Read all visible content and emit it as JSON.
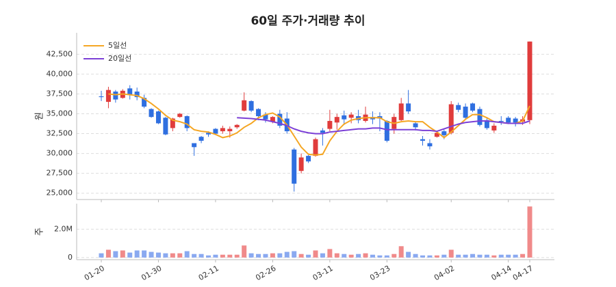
{
  "chart_data": [
    {
      "type": "candlestick",
      "title": "60일 주가·거래량 추이",
      "ylabel": "원",
      "up_color": "#e03c3c",
      "down_color": "#2f6fe0",
      "grid": true,
      "legend": "upper left",
      "ylim": [
        24200,
        45200
      ],
      "yticks": [
        {
          "value": 25000,
          "label": "25,000"
        },
        {
          "value": 27500,
          "label": "27,500"
        },
        {
          "value": 30000,
          "label": "30,000"
        },
        {
          "value": 32500,
          "label": "32,500"
        },
        {
          "value": 35000,
          "label": "35,000"
        },
        {
          "value": 37500,
          "label": "37,500"
        },
        {
          "value": 40000,
          "label": "40,000"
        },
        {
          "value": 42500,
          "label": "42,500"
        }
      ],
      "open": [
        37200,
        36500,
        37800,
        37000,
        38200,
        37800,
        37000,
        35600,
        35300,
        34500,
        33200,
        34600,
        34700,
        31300,
        32100,
        32600,
        33100,
        32800,
        32800,
        33300,
        35400,
        36600,
        35600,
        34900,
        34000,
        35000,
        34400,
        30500,
        27800,
        29700,
        29700,
        32900,
        33100,
        33900,
        34800,
        34500,
        34700,
        34100,
        34600,
        34700,
        34100,
        33100,
        34200,
        36300,
        33800,
        31800,
        31300,
        32100,
        32800,
        32600,
        36100,
        35900,
        36300,
        35600,
        34200,
        32900,
        34100,
        34500,
        34400,
        34000,
        34200
      ],
      "high": [
        37900,
        38400,
        38000,
        38100,
        38600,
        38300,
        37400,
        35700,
        35400,
        34600,
        34500,
        35100,
        34800,
        31300,
        32200,
        32800,
        33200,
        33500,
        33400,
        33700,
        37700,
        36700,
        35700,
        35200,
        34700,
        35500,
        35200,
        30700,
        30000,
        29800,
        32000,
        33200,
        35500,
        35000,
        35400,
        35200,
        35500,
        35900,
        35300,
        35200,
        34200,
        35000,
        37000,
        38000,
        34000,
        32200,
        31800,
        32800,
        33000,
        36600,
        36400,
        36300,
        36400,
        35900,
        34500,
        33800,
        34700,
        34700,
        34600,
        34700,
        44100
      ],
      "low": [
        36600,
        35700,
        36400,
        36900,
        36800,
        36700,
        35700,
        34500,
        33700,
        32300,
        32800,
        34500,
        32800,
        29700,
        31300,
        32100,
        32400,
        32500,
        32000,
        33100,
        35300,
        35200,
        34200,
        33900,
        33800,
        33200,
        32500,
        25200,
        27500,
        28800,
        29600,
        31000,
        32800,
        33000,
        33600,
        33800,
        33800,
        33900,
        33700,
        32800,
        31400,
        32500,
        34100,
        35000,
        32900,
        31000,
        30500,
        32000,
        31800,
        32400,
        35200,
        34300,
        35200,
        33400,
        33000,
        32600,
        33600,
        33700,
        33400,
        33600,
        33700
      ],
      "close": [
        37100,
        38000,
        36800,
        37900,
        37400,
        37100,
        35900,
        34600,
        33800,
        32400,
        34400,
        35000,
        33200,
        30800,
        31600,
        32400,
        32500,
        33200,
        33100,
        33600,
        36700,
        35400,
        34700,
        34300,
        34600,
        33500,
        32800,
        26200,
        29500,
        29000,
        31800,
        32600,
        34100,
        34600,
        34300,
        34900,
        34200,
        34900,
        34300,
        34400,
        31600,
        34600,
        36300,
        35300,
        33300,
        31600,
        30900,
        32600,
        32300,
        36200,
        35500,
        34500,
        35400,
        33600,
        33200,
        33500,
        34000,
        33900,
        33900,
        34300,
        44100
      ],
      "series": [
        {
          "name": "5일선",
          "color": "#f5a623",
          "values": [
            null,
            37500,
            37400,
            37500,
            37400,
            37300,
            36900,
            36300,
            35600,
            34800,
            34200,
            34000,
            33700,
            33000,
            32800,
            32700,
            32400,
            32000,
            32200,
            32600,
            33300,
            33800,
            34500,
            34900,
            35100,
            34600,
            33600,
            32200,
            30800,
            29900,
            29800,
            29900,
            31600,
            32800,
            33700,
            34200,
            34400,
            34500,
            34500,
            34500,
            34000,
            33800,
            34000,
            34100,
            34000,
            34000,
            33300,
            32700,
            32000,
            32700,
            33500,
            34300,
            34900,
            34900,
            34500,
            34000,
            33900,
            33800,
            33800,
            34100,
            36000
          ]
        },
        {
          "name": "20일선",
          "color": "#7b3fd6",
          "values": [
            null,
            null,
            null,
            null,
            null,
            null,
            null,
            null,
            null,
            null,
            null,
            null,
            null,
            null,
            null,
            null,
            null,
            null,
            null,
            34500,
            34450,
            34400,
            34300,
            34200,
            34000,
            33800,
            33500,
            33100,
            32800,
            32600,
            32500,
            32500,
            32700,
            32800,
            32900,
            33000,
            33100,
            33100,
            33200,
            33200,
            33000,
            33000,
            33000,
            33000,
            33000,
            32900,
            32900,
            32800,
            33100,
            33400,
            33700,
            33900,
            34000,
            34100,
            34100,
            34000,
            33900,
            33800,
            33800,
            33800,
            34100
          ]
        }
      ]
    },
    {
      "type": "bar",
      "ylabel": "주",
      "up_color": "#f08a8a",
      "down_color": "#8aa9f0",
      "grid": true,
      "ylim": [
        -150000,
        3800000
      ],
      "yticks": [
        0,
        {
          "value": 2000000,
          "label": "2.0M"
        }
      ],
      "categories": [
        "01-20",
        null,
        null,
        null,
        null,
        null,
        null,
        null,
        "01-30",
        null,
        null,
        null,
        null,
        null,
        null,
        null,
        "02-11",
        null,
        null,
        null,
        null,
        null,
        null,
        null,
        "02-26",
        null,
        null,
        null,
        null,
        null,
        null,
        null,
        "03-11",
        null,
        null,
        null,
        null,
        null,
        null,
        null,
        "03-23",
        null,
        null,
        null,
        null,
        null,
        null,
        null,
        null,
        "04-02",
        null,
        null,
        null,
        null,
        null,
        null,
        null,
        "04-14",
        null,
        null,
        "04-17"
      ],
      "values": [
        300000,
        550000,
        450000,
        500000,
        350000,
        500000,
        500000,
        400000,
        350000,
        300000,
        300000,
        300000,
        450000,
        250000,
        250000,
        150000,
        200000,
        200000,
        200000,
        200000,
        850000,
        300000,
        250000,
        250000,
        300000,
        300000,
        400000,
        450000,
        250000,
        200000,
        500000,
        300000,
        600000,
        300000,
        250000,
        200000,
        250000,
        300000,
        200000,
        150000,
        150000,
        250000,
        800000,
        400000,
        250000,
        150000,
        150000,
        150000,
        200000,
        550000,
        200000,
        200000,
        250000,
        200000,
        200000,
        150000,
        200000,
        200000,
        200000,
        250000,
        3600000
      ]
    }
  ]
}
